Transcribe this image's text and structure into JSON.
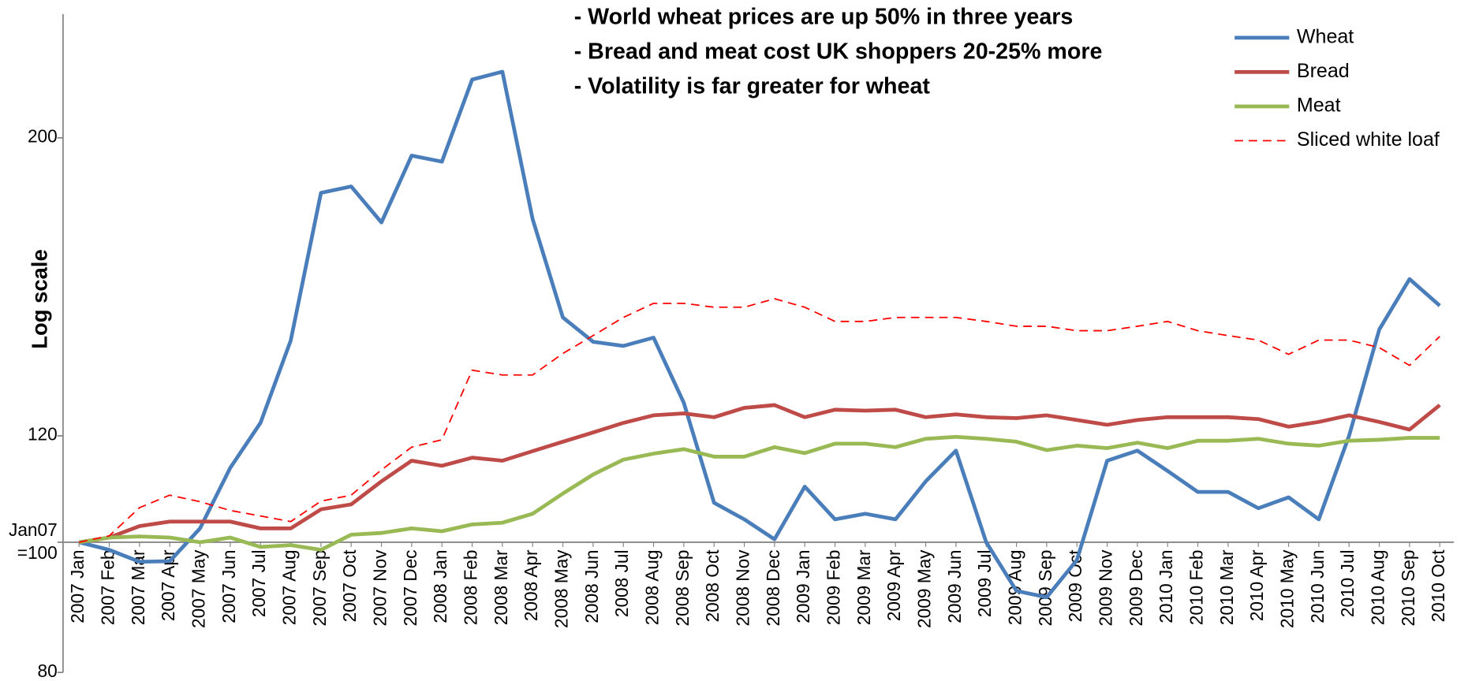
{
  "chart_data": {
    "type": "line",
    "log_scale": true,
    "ylabel": "Log scale",
    "annotations": [
      "- World wheat prices are up 50% in three years",
      "- Bread and meat cost UK shoppers 20-25% more",
      "- Volatility is far greater for wheat"
    ],
    "legend": "upper right",
    "ylim": [
      80,
      250
    ],
    "yticks": [
      80,
      {
        "value": 100,
        "label": "Jan07\n=100"
      },
      120,
      200
    ],
    "categories": [
      "2007 Jan",
      "2007 Feb",
      "2007 Mar",
      "2007 Apr",
      "2007 May",
      "2007 Jun",
      "2007 Jul",
      "2007 Aug",
      "2007 Sep",
      "2007 Oct",
      "2007 Nov",
      "2007 Dec",
      "2008 Jan",
      "2008 Feb",
      "2008 Mar",
      "2008 Apr",
      "2008 May",
      "2008 Jun",
      "2008 Jul",
      "2008 Aug",
      "2008 Sep",
      "2008 Oct",
      "2008 Nov",
      "2008 Dec",
      "2009 Jan",
      "2009 Feb",
      "2009 Mar",
      "2009 Apr",
      "2009 May",
      "2009 Jun",
      "2009 Jul",
      "2009 Aug",
      "2009 Sep",
      "2009 Oct",
      "2009 Nov",
      "2009 Dec",
      "2010 Jan",
      "2010 Feb",
      "2010 Mar",
      "2010 Apr",
      "2010 May",
      "2010 Jun",
      "2010 Jul",
      "2010 Aug",
      "2010 Sep",
      "2010 Oct"
    ],
    "series": [
      {
        "name": "Wheat",
        "color": "#4a7ebb",
        "dashed": false,
        "values": [
          100,
          98.7,
          96.7,
          96.8,
          102.4,
          113.6,
          122.7,
          141.3,
          182,
          184,
          173,
          194,
          192,
          221,
          224,
          174,
          147,
          141,
          140,
          142,
          127,
          107,
          104,
          100.5,
          110,
          104,
          105,
          104,
          111,
          117,
          100,
          92,
          91,
          97,
          115,
          117,
          113,
          109,
          109,
          106,
          108,
          104,
          120,
          144,
          157,
          150
        ]
      },
      {
        "name": "Bread",
        "color": "#be4b48",
        "dashed": false,
        "values": [
          100,
          100.8,
          102.8,
          103.6,
          103.6,
          103.6,
          102.4,
          102.4,
          105.8,
          106.7,
          111,
          115,
          114,
          115.6,
          115,
          116.9,
          118.8,
          120.7,
          122.7,
          124.3,
          124.7,
          123.9,
          125.9,
          126.5,
          123.9,
          125.5,
          125.3,
          125.5,
          123.9,
          124.5,
          123.9,
          123.7,
          124.3,
          123.3,
          122.3,
          123.3,
          123.9,
          123.9,
          123.9,
          123.5,
          121.9,
          122.9,
          124.3,
          122.9,
          121.3,
          126.5
        ]
      },
      {
        "name": "Meat",
        "color": "#98b954",
        "dashed": false,
        "values": [
          100,
          100.8,
          101,
          100.8,
          100,
          100.8,
          99.2,
          99.5,
          98.7,
          101.3,
          101.6,
          102.4,
          101.9,
          103.1,
          103.4,
          105,
          108.7,
          112.3,
          115.2,
          116.4,
          117.3,
          115.8,
          115.8,
          117.7,
          116.5,
          118.4,
          118.4,
          117.7,
          119.4,
          119.8,
          119.4,
          118.8,
          117.1,
          118,
          117.5,
          118.6,
          117.5,
          119,
          119,
          119.4,
          118.4,
          118,
          119,
          119.2,
          119.6,
          119.6
        ]
      },
      {
        "name": "Sliced white loaf",
        "color": "#ff0000",
        "dashed": true,
        "values": [
          100,
          101.1,
          106.1,
          108.4,
          107.2,
          105.6,
          104.6,
          103.6,
          107.3,
          108.4,
          113.2,
          117.7,
          119.2,
          134.3,
          133.2,
          133.2,
          138.2,
          142.5,
          147,
          150.6,
          150.6,
          149.6,
          149.6,
          151.8,
          149.6,
          146,
          146,
          147,
          147,
          147,
          146,
          144.8,
          144.8,
          143.7,
          143.7,
          144.8,
          146,
          143.7,
          142.5,
          141.4,
          138,
          141.4,
          141.4,
          139.6,
          135.4,
          142.3
        ]
      }
    ]
  }
}
